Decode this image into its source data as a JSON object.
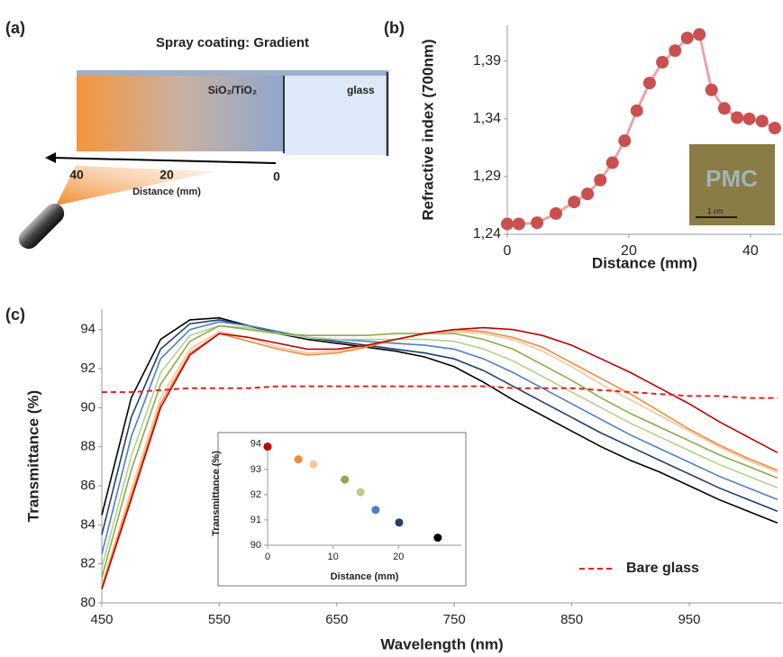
{
  "diagram": {
    "panel": "(a)",
    "title": "Spray coating: Gradient",
    "coating": "SiO₂/TiO₂",
    "substrate": "glass",
    "ticks": [
      "40",
      "20",
      "0"
    ],
    "axis_label": "Distance (mm)"
  },
  "chart_data": [
    {
      "type": "line",
      "panel": "(b)",
      "xlabel": "Distance (mm)",
      "ylabel": "Refractive index (700nm)",
      "color": "#c9504f",
      "line_color": "#e9a5a5",
      "markers": true,
      "x": [
        0,
        1.9,
        4.9,
        8,
        11,
        13.2,
        15.3,
        17.3,
        19.3,
        21.3,
        23.4,
        25.5,
        27.6,
        29.6,
        31.6,
        33.6,
        35.7,
        37.8,
        39.8,
        41.9,
        44
      ],
      "values": [
        1.249,
        1.249,
        1.25,
        1.258,
        1.268,
        1.275,
        1.287,
        1.302,
        1.321,
        1.347,
        1.371,
        1.389,
        1.399,
        1.41,
        1.413,
        1.365,
        1.349,
        1.341,
        1.34,
        1.338,
        1.332
      ],
      "xlim": [
        0,
        45.2
      ],
      "xticks": [
        0,
        20,
        40
      ],
      "ylim": [
        1.24,
        1.421
      ],
      "yticks": [
        {
          "value": 1.24,
          "label": "1,24"
        },
        {
          "value": 1.29,
          "label": "1,29"
        },
        {
          "value": 1.34,
          "label": "1,34"
        },
        {
          "value": 1.39,
          "label": "1,39"
        }
      ],
      "photo_text": "PMC",
      "scale_bar": "1 cm"
    },
    {
      "type": "line",
      "panel": "(c)",
      "xlabel": "Wavelength (nm)",
      "ylabel": "Transmittance (%)",
      "legend": "lower right",
      "x": [
        450,
        475,
        500,
        525,
        550,
        575,
        600,
        625,
        650,
        675,
        700,
        725,
        750,
        775,
        800,
        825,
        850,
        875,
        900,
        925,
        950,
        975,
        1000,
        1025
      ],
      "series": [
        {
          "color": "#000000",
          "values": [
            84.5,
            90.5,
            93.5,
            94.5,
            94.6,
            94.2,
            93.8,
            93.5,
            93.3,
            93.1,
            92.9,
            92.6,
            92.1,
            91.3,
            90.4,
            89.6,
            88.8,
            88.0,
            87.3,
            86.7,
            86.0,
            85.3,
            84.7,
            84.1
          ]
        },
        {
          "color": "#1f3f6e",
          "values": [
            83.5,
            89.5,
            93.0,
            94.3,
            94.5,
            94.2,
            93.9,
            93.6,
            93.4,
            93.2,
            93.0,
            92.8,
            92.5,
            91.9,
            91.1,
            90.3,
            89.5,
            88.7,
            88.0,
            87.3,
            86.6,
            85.9,
            85.3,
            84.7
          ]
        },
        {
          "color": "#4a7fc6",
          "values": [
            82.5,
            88.5,
            92.5,
            94.0,
            94.4,
            94.2,
            93.9,
            93.6,
            93.5,
            93.4,
            93.3,
            93.2,
            93.0,
            92.5,
            91.8,
            91.0,
            90.2,
            89.4,
            88.6,
            87.9,
            87.2,
            86.5,
            85.9,
            85.3
          ]
        },
        {
          "color": "#b5d08c",
          "values": [
            81.8,
            87.5,
            91.8,
            93.7,
            94.2,
            94.1,
            93.8,
            93.6,
            93.5,
            93.5,
            93.5,
            93.5,
            93.4,
            93.0,
            92.4,
            91.6,
            90.8,
            90.0,
            89.2,
            88.5,
            87.8,
            87.1,
            86.5,
            85.9
          ]
        },
        {
          "color": "#86ad48",
          "values": [
            81.3,
            86.8,
            91.2,
            93.4,
            94.2,
            94.0,
            93.8,
            93.7,
            93.7,
            93.7,
            93.8,
            93.8,
            93.8,
            93.5,
            93.0,
            92.2,
            91.4,
            90.5,
            89.7,
            89.0,
            88.3,
            87.6,
            87.0,
            86.4
          ]
        },
        {
          "color": "#f8c49b",
          "values": [
            80.9,
            85.8,
            90.5,
            93.0,
            93.9,
            93.6,
            93.1,
            92.8,
            92.9,
            93.2,
            93.5,
            93.8,
            93.9,
            93.8,
            93.5,
            92.9,
            92.1,
            91.2,
            90.4,
            89.6,
            88.8,
            88.0,
            87.3,
            86.7
          ]
        },
        {
          "color": "#ee8a3a",
          "values": [
            80.8,
            85.5,
            90.2,
            92.8,
            93.8,
            93.4,
            93.0,
            92.7,
            92.8,
            93.1,
            93.5,
            93.8,
            94.0,
            93.9,
            93.6,
            93.1,
            92.3,
            91.5,
            90.7,
            89.8,
            88.9,
            88.1,
            87.4,
            86.8
          ]
        },
        {
          "color": "#c00000",
          "values": [
            80.7,
            85.3,
            90.0,
            92.7,
            93.8,
            93.6,
            93.3,
            93.0,
            93.0,
            93.2,
            93.5,
            93.8,
            94.0,
            94.1,
            94.0,
            93.7,
            93.2,
            92.5,
            91.8,
            91.0,
            90.2,
            89.3,
            88.5,
            87.7
          ]
        },
        {
          "name": "Bare glass",
          "color": "#e8221f",
          "dash": true,
          "values": [
            90.8,
            90.8,
            90.9,
            91.0,
            91.0,
            91.0,
            91.1,
            91.1,
            91.1,
            91.1,
            91.1,
            91.1,
            91.1,
            91.1,
            91.0,
            91.0,
            91.0,
            90.9,
            90.8,
            90.7,
            90.6,
            90.6,
            90.5,
            90.5
          ]
        }
      ],
      "xlim": [
        450,
        1029
      ],
      "xticks": [
        450,
        550,
        650,
        750,
        850,
        950
      ],
      "ylim": [
        80,
        95.05
      ],
      "yticks": [
        80,
        82,
        84,
        86,
        88,
        90,
        92,
        94
      ]
    },
    {
      "type": "scatter",
      "xlabel": "Distance (mm)",
      "ylabel": "Transmittance (%)",
      "x": [
        0,
        4.7,
        7,
        11.8,
        14.2,
        16.5,
        20.1,
        26
      ],
      "values": [
        93.9,
        93.4,
        93.2,
        92.6,
        92.1,
        91.4,
        90.9,
        90.3
      ],
      "colors": [
        "#c00000",
        "#ee8a3a",
        "#f8c49b",
        "#86ad48",
        "#b5d08c",
        "#4a7fc6",
        "#1f3f6e",
        "#000000"
      ],
      "xlim": [
        0,
        29.6
      ],
      "xticks": [
        0,
        10,
        20
      ],
      "ylim": [
        90,
        94.1
      ],
      "yticks": [
        90,
        91,
        92,
        93,
        94
      ]
    }
  ]
}
